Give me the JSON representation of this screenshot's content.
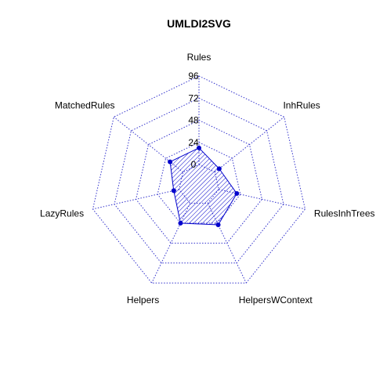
{
  "chart_data": {
    "type": "radar",
    "title": "UMLDI2SVG",
    "axes": [
      "Rules",
      "InhRules",
      "RulesInhTrees",
      "HelpersWContext",
      "Helpers",
      "LazyRules",
      "MatchedRules"
    ],
    "grid_ticks": [
      "0",
      "24",
      "48",
      "72",
      "96"
    ],
    "range": [
      0,
      96
    ],
    "series": [
      {
        "values": [
          18,
          6,
          20,
          26,
          24,
          6,
          18
        ],
        "color": "#0000cc"
      }
    ],
    "grid": true,
    "colors": {
      "grid": "#3333cc",
      "series_line": "#0000cc",
      "series_fill_hatch": "#0000cc",
      "points": "#0000cc"
    }
  }
}
